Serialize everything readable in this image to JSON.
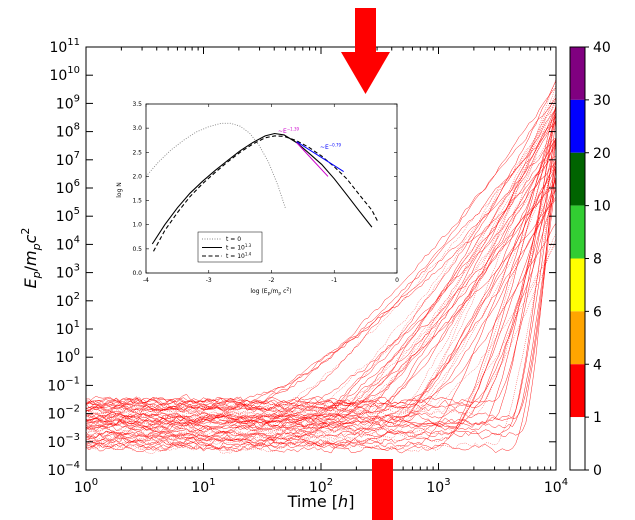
{
  "chart_data": [
    {
      "type": "scatter",
      "xlabel_main": "Time [",
      "xlabel_italic": "h",
      "xlabel_end": "]",
      "ylabel_parts": {
        "E": "E",
        "p_sub": "p",
        "slash": "/",
        "m": "m",
        "p_sub2": "p",
        "c": "c",
        "sup": "2"
      },
      "x_scale": "log",
      "y_scale": "log",
      "xlim": [
        1,
        10000
      ],
      "ylim": [
        0.0001,
        100000000000
      ],
      "x_ticks": [
        {
          "base": "10",
          "exp": "0",
          "value": 1
        },
        {
          "base": "10",
          "exp": "1",
          "value": 10
        },
        {
          "base": "10",
          "exp": "2",
          "value": 100
        },
        {
          "base": "10",
          "exp": "3",
          "value": 1000
        },
        {
          "base": "10",
          "exp": "4",
          "value": 10000
        }
      ],
      "y_ticks": [
        {
          "base": "10",
          "exp": "−4",
          "value": 0.0001
        },
        {
          "base": "10",
          "exp": "−3",
          "value": 0.001
        },
        {
          "base": "10",
          "exp": "−2",
          "value": 0.01
        },
        {
          "base": "10",
          "exp": "−1",
          "value": 0.1
        },
        {
          "base": "10",
          "exp": "0",
          "value": 1
        },
        {
          "base": "10",
          "exp": "1",
          "value": 10
        },
        {
          "base": "10",
          "exp": "2",
          "value": 100
        },
        {
          "base": "10",
          "exp": "3",
          "value": 1000
        },
        {
          "base": "10",
          "exp": "4",
          "value": 10000
        },
        {
          "base": "10",
          "exp": "5",
          "value": 100000
        },
        {
          "base": "10",
          "exp": "6",
          "value": 1000000
        },
        {
          "base": "10",
          "exp": "7",
          "value": 10000000
        },
        {
          "base": "10",
          "exp": "8",
          "value": 100000000
        },
        {
          "base": "10",
          "exp": "9",
          "value": 1000000000
        },
        {
          "base": "10",
          "exp": "10",
          "value": 10000000000
        },
        {
          "base": "10",
          "exp": "11",
          "value": 100000000000
        }
      ],
      "particle_tracks": {
        "color": "#ff0000",
        "count": 60,
        "early_energy_range": [
          0.0005,
          0.03
        ],
        "final_energy_range": [
          100,
          30000000000
        ],
        "late_time_start": 10000
      },
      "arrows": [
        {
          "direction": "down",
          "color": "#ff0000"
        },
        {
          "direction": "up-bar",
          "color": "#ff0000"
        }
      ],
      "grid": false
    },
    {
      "type": "line",
      "xlabel": "log (E",
      "xlabel_sub": "p",
      "xlabel_mid": "/m",
      "xlabel_sub2": "p",
      "xlabel_end": " c",
      "xlabel_sup": "2",
      "xlabel_close": ")",
      "ylabel": "log N",
      "xlim": [
        -4,
        0
      ],
      "ylim": [
        0,
        3.5
      ],
      "x_ticks": [
        "-4",
        "-3",
        "-2",
        "-1",
        "0"
      ],
      "y_ticks": [
        "0.0",
        "0.5",
        "1.0",
        "1.5",
        "2.0",
        "2.5",
        "3.0",
        "3.5"
      ],
      "series": [
        {
          "name": "t = 0",
          "style": "dotted",
          "color": "#888888",
          "x": [
            -4.0,
            -3.8,
            -3.6,
            -3.4,
            -3.2,
            -3.0,
            -2.8,
            -2.65,
            -2.5,
            -2.35,
            -2.2,
            -2.05,
            -1.9,
            -1.78
          ],
          "y": [
            2.0,
            2.3,
            2.55,
            2.75,
            2.92,
            3.03,
            3.1,
            3.1,
            3.04,
            2.9,
            2.65,
            2.3,
            1.82,
            1.35
          ]
        },
        {
          "name": "t = 10",
          "sup": "1.3",
          "style": "solid",
          "color": "#000000",
          "x": [
            -3.9,
            -3.7,
            -3.5,
            -3.3,
            -3.1,
            -2.9,
            -2.7,
            -2.5,
            -2.3,
            -2.1,
            -1.95,
            -1.8,
            -1.6,
            -1.4,
            -1.2,
            -1.0,
            -0.8,
            -0.6,
            -0.4
          ],
          "y": [
            0.6,
            1.0,
            1.35,
            1.65,
            1.9,
            2.12,
            2.33,
            2.53,
            2.7,
            2.84,
            2.89,
            2.86,
            2.7,
            2.48,
            2.25,
            1.95,
            1.62,
            1.28,
            0.95
          ]
        },
        {
          "name": "t = 10",
          "sup": "1.4",
          "style": "dashed",
          "color": "#000000",
          "x": [
            -3.88,
            -3.7,
            -3.5,
            -3.3,
            -3.1,
            -2.9,
            -2.7,
            -2.5,
            -2.3,
            -2.1,
            -1.95,
            -1.8,
            -1.6,
            -1.4,
            -1.2,
            -1.0,
            -0.8,
            -0.6,
            -0.4,
            -0.3
          ],
          "y": [
            0.45,
            0.88,
            1.25,
            1.58,
            1.85,
            2.08,
            2.3,
            2.5,
            2.67,
            2.8,
            2.84,
            2.83,
            2.74,
            2.6,
            2.42,
            2.2,
            1.95,
            1.62,
            1.3,
            1.05
          ]
        }
      ],
      "fits": [
        {
          "label": "~E",
          "sup": "−1.39",
          "color": "#cc00cc",
          "x": [
            -1.6,
            -1.1
          ],
          "y": [
            2.7,
            2.0
          ]
        },
        {
          "label": "~E",
          "sup": "−0.79",
          "color": "#0000ff",
          "x": [
            -1.6,
            -0.85
          ],
          "y": [
            2.72,
            2.1
          ]
        }
      ],
      "legend": "bottom-left"
    }
  ],
  "colorbar": {
    "labels": [
      "40",
      "30",
      "20",
      "10",
      "8",
      "6",
      "4",
      "1",
      "0"
    ],
    "colors": [
      "#800080",
      "#0000ff",
      "#006400",
      "#32cd32",
      "#ffff00",
      "#ffa500",
      "#ff0000",
      "#ffffff"
    ]
  }
}
